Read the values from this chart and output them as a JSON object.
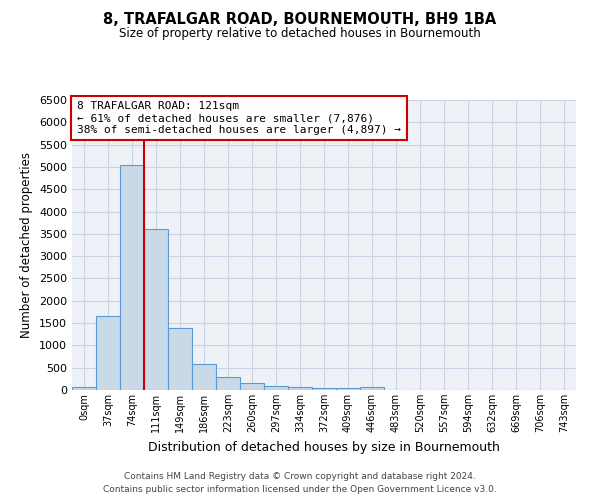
{
  "title": "8, TRAFALGAR ROAD, BOURNEMOUTH, BH9 1BA",
  "subtitle": "Size of property relative to detached houses in Bournemouth",
  "xlabel": "Distribution of detached houses by size in Bournemouth",
  "ylabel": "Number of detached properties",
  "bar_labels": [
    "0sqm",
    "37sqm",
    "74sqm",
    "111sqm",
    "149sqm",
    "186sqm",
    "223sqm",
    "260sqm",
    "297sqm",
    "334sqm",
    "372sqm",
    "409sqm",
    "446sqm",
    "483sqm",
    "520sqm",
    "557sqm",
    "594sqm",
    "632sqm",
    "669sqm",
    "706sqm",
    "743sqm"
  ],
  "bar_values": [
    70,
    1650,
    5050,
    3600,
    1390,
    590,
    285,
    150,
    90,
    60,
    55,
    50,
    65,
    0,
    0,
    0,
    0,
    0,
    0,
    0,
    0
  ],
  "bar_color": "#c9d9e8",
  "bar_edge_color": "#5b9bd5",
  "vline_x_index": 2.5,
  "vline_color": "#cc0000",
  "annotation_text": "8 TRAFALGAR ROAD: 121sqm\n← 61% of detached houses are smaller (7,876)\n38% of semi-detached houses are larger (4,897) →",
  "annotation_box_color": "#ffffff",
  "annotation_box_edge": "#cc0000",
  "ylim": [
    0,
    6500
  ],
  "yticks": [
    0,
    500,
    1000,
    1500,
    2000,
    2500,
    3000,
    3500,
    4000,
    4500,
    5000,
    5500,
    6000,
    6500
  ],
  "grid_color": "#c8d4e3",
  "bg_color": "#eef2f7",
  "footer1": "Contains HM Land Registry data © Crown copyright and database right 2024.",
  "footer2": "Contains public sector information licensed under the Open Government Licence v3.0."
}
